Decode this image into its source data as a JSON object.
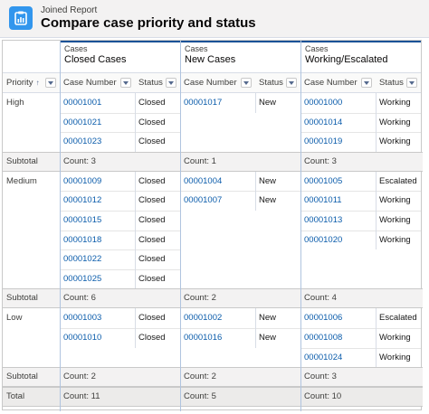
{
  "header": {
    "subtitle": "Joined Report",
    "title": "Compare case priority and status",
    "icon": "report-icon",
    "icon_color": "#3296ed"
  },
  "columns": {
    "priority": "Priority",
    "priority_sort": "↑",
    "case_number": "Case Number",
    "status": "Status"
  },
  "blocks": [
    {
      "label": "Cases",
      "name": "Closed Cases"
    },
    {
      "label": "Cases",
      "name": "New Cases"
    },
    {
      "label": "Cases",
      "name": "Working/Escalated"
    }
  ],
  "groups": [
    {
      "priority": "High",
      "subtotal_label": "Subtotal",
      "blocks": [
        {
          "rows": [
            {
              "num": "00001001",
              "status": "Closed"
            },
            {
              "num": "00001021",
              "status": "Closed"
            },
            {
              "num": "00001023",
              "status": "Closed"
            }
          ],
          "count": "Count: 3"
        },
        {
          "rows": [
            {
              "num": "00001017",
              "status": "New"
            }
          ],
          "count": "Count: 1"
        },
        {
          "rows": [
            {
              "num": "00001000",
              "status": "Working"
            },
            {
              "num": "00001014",
              "status": "Working"
            },
            {
              "num": "00001019",
              "status": "Working"
            }
          ],
          "count": "Count: 3"
        }
      ]
    },
    {
      "priority": "Medium",
      "subtotal_label": "Subtotal",
      "blocks": [
        {
          "rows": [
            {
              "num": "00001009",
              "status": "Closed"
            },
            {
              "num": "00001012",
              "status": "Closed"
            },
            {
              "num": "00001015",
              "status": "Closed"
            },
            {
              "num": "00001018",
              "status": "Closed"
            },
            {
              "num": "00001022",
              "status": "Closed"
            },
            {
              "num": "00001025",
              "status": "Closed"
            }
          ],
          "count": "Count: 6"
        },
        {
          "rows": [
            {
              "num": "00001004",
              "status": "New"
            },
            {
              "num": "00001007",
              "status": "New"
            }
          ],
          "count": "Count: 2"
        },
        {
          "rows": [
            {
              "num": "00001005",
              "status": "Escalated"
            },
            {
              "num": "00001011",
              "status": "Working"
            },
            {
              "num": "00001013",
              "status": "Working"
            },
            {
              "num": "00001020",
              "status": "Working"
            }
          ],
          "count": "Count: 4"
        }
      ]
    },
    {
      "priority": "Low",
      "subtotal_label": "Subtotal",
      "blocks": [
        {
          "rows": [
            {
              "num": "00001003",
              "status": "Closed"
            },
            {
              "num": "00001010",
              "status": "Closed"
            }
          ],
          "count": "Count: 2"
        },
        {
          "rows": [
            {
              "num": "00001002",
              "status": "New"
            },
            {
              "num": "00001016",
              "status": "New"
            }
          ],
          "count": "Count: 2"
        },
        {
          "rows": [
            {
              "num": "00001006",
              "status": "Escalated"
            },
            {
              "num": "00001008",
              "status": "Working"
            },
            {
              "num": "00001024",
              "status": "Working"
            }
          ],
          "count": "Count: 3"
        }
      ]
    }
  ],
  "total": {
    "label": "Total",
    "counts": [
      "Count: 11",
      "Count: 5",
      "Count: 10"
    ]
  },
  "colors": {
    "link": "#0b5cab",
    "block_accent": "#1b5297",
    "header_bg": "#f3f2f2"
  }
}
